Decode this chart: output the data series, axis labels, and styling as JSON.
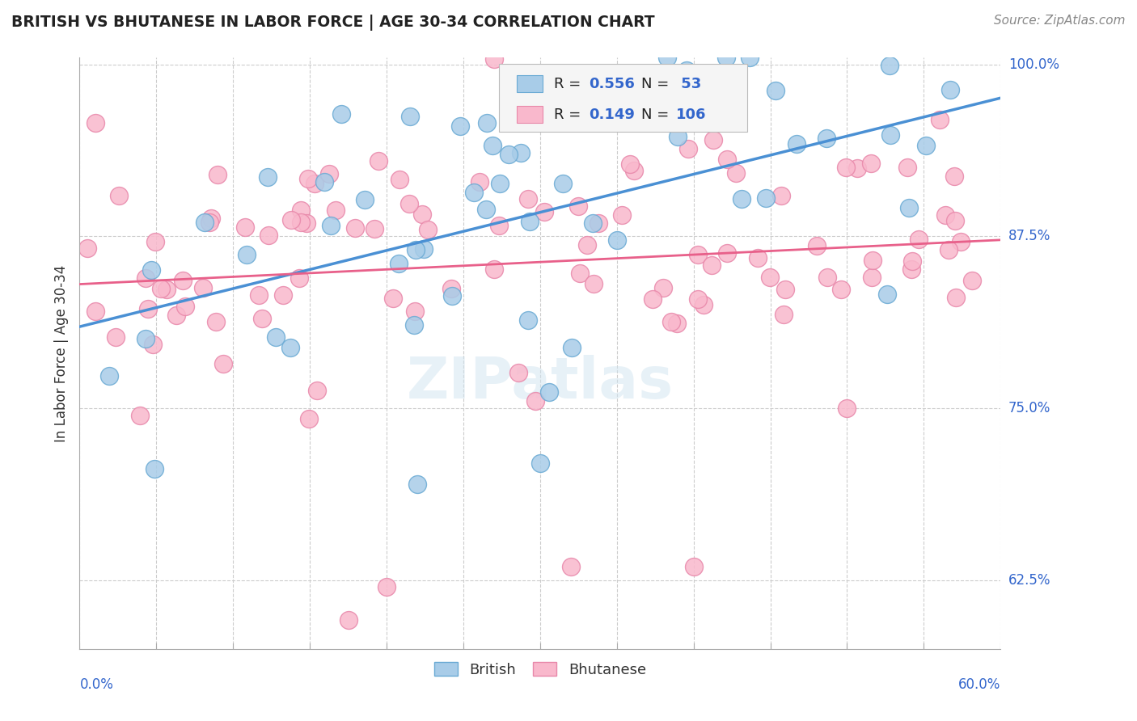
{
  "title": "BRITISH VS BHUTANESE IN LABOR FORCE | AGE 30-34 CORRELATION CHART",
  "source": "Source: ZipAtlas.com",
  "ylabel": "In Labor Force | Age 30-34",
  "british_R": 0.556,
  "british_N": 53,
  "bhutanese_R": 0.149,
  "bhutanese_N": 106,
  "xmin": 0.0,
  "xmax": 0.6,
  "ymin": 0.575,
  "ymax": 1.005,
  "y_tick_positions": [
    0.625,
    0.75,
    0.875,
    1.0
  ],
  "y_tick_labels": [
    "62.5%",
    "75.0%",
    "87.5%",
    "100.0%"
  ],
  "blue_face": "#a8cce8",
  "blue_edge": "#6aaad4",
  "pink_face": "#f9b8cc",
  "pink_edge": "#e888aa",
  "blue_line": "#4a90d4",
  "pink_line": "#e8608a",
  "grid_color": "#cccccc",
  "text_color": "#3366cc",
  "label_color": "#333333",
  "watermark_color": "#d0e4f0"
}
